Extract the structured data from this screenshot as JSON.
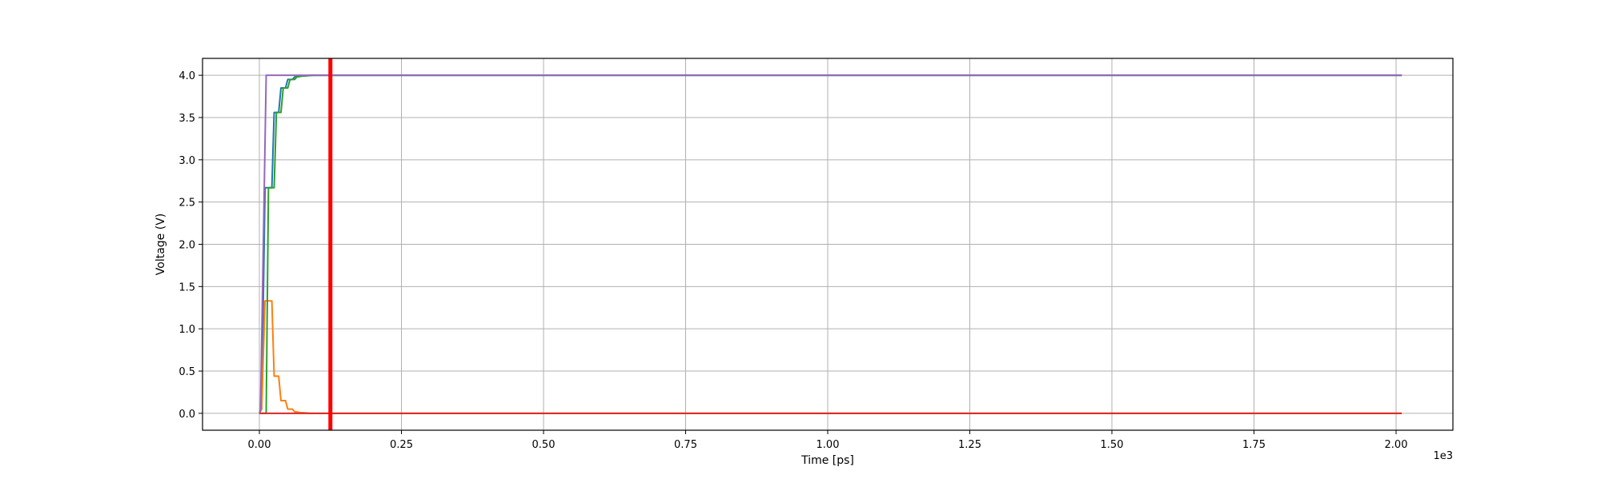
{
  "chart_data": {
    "type": "line",
    "title": "",
    "xlabel": "Time [ps]",
    "ylabel": "Voltage (V)",
    "x_offset_label": "1e3",
    "xlim": [
      -0.1,
      2.1
    ],
    "ylim": [
      -0.2,
      4.2
    ],
    "x_ticks": [
      0.0,
      0.25,
      0.5,
      0.75,
      1.0,
      1.25,
      1.5,
      1.75,
      2.0
    ],
    "x_tick_labels": [
      "0.00",
      "0.25",
      "0.50",
      "0.75",
      "1.00",
      "1.25",
      "1.50",
      "1.75",
      "2.00"
    ],
    "y_ticks": [
      0.0,
      0.5,
      1.0,
      1.5,
      2.0,
      2.5,
      3.0,
      3.5,
      4.0
    ],
    "y_tick_labels": [
      "0.0",
      "0.5",
      "1.0",
      "1.5",
      "2.0",
      "2.5",
      "3.0",
      "3.5",
      "4.0"
    ],
    "grid": true,
    "legend": "none",
    "series": [
      {
        "color": "#1f77b4",
        "points": [
          [
            0,
            0
          ],
          [
            0.004,
            0.05
          ],
          [
            0.01,
            2.67
          ],
          [
            0.022,
            2.67
          ],
          [
            0.026,
            3.56
          ],
          [
            0.034,
            3.56
          ],
          [
            0.038,
            3.85
          ],
          [
            0.046,
            3.85
          ],
          [
            0.05,
            3.95
          ],
          [
            0.058,
            3.95
          ],
          [
            0.062,
            3.98
          ],
          [
            0.072,
            3.99
          ],
          [
            0.09,
            4.0
          ],
          [
            2.01,
            4.0
          ]
        ]
      },
      {
        "color": "#ff7f0e",
        "points": [
          [
            0,
            0
          ],
          [
            0.004,
            0.05
          ],
          [
            0.01,
            1.33
          ],
          [
            0.022,
            1.33
          ],
          [
            0.026,
            0.44
          ],
          [
            0.034,
            0.44
          ],
          [
            0.038,
            0.15
          ],
          [
            0.046,
            0.15
          ],
          [
            0.05,
            0.05
          ],
          [
            0.058,
            0.05
          ],
          [
            0.062,
            0.02
          ],
          [
            0.072,
            0.01
          ],
          [
            0.09,
            0.0
          ],
          [
            2.01,
            0.0
          ]
        ]
      },
      {
        "color": "#2ca02c",
        "points": [
          [
            0,
            0
          ],
          [
            0.012,
            0.0
          ],
          [
            0.016,
            2.67
          ],
          [
            0.026,
            2.67
          ],
          [
            0.03,
            3.56
          ],
          [
            0.038,
            3.56
          ],
          [
            0.042,
            3.85
          ],
          [
            0.05,
            3.85
          ],
          [
            0.054,
            3.95
          ],
          [
            0.062,
            3.95
          ],
          [
            0.066,
            3.98
          ],
          [
            0.076,
            3.99
          ],
          [
            0.095,
            4.0
          ],
          [
            2.01,
            4.0
          ]
        ]
      },
      {
        "color": "#d62728",
        "points": [
          [
            0,
            0
          ],
          [
            2.01,
            0
          ]
        ]
      },
      {
        "color": "#9467bd",
        "points": [
          [
            0,
            0
          ],
          [
            0.002,
            0.05
          ],
          [
            0.012,
            4.0
          ],
          [
            2.01,
            4.0
          ]
        ]
      }
    ],
    "marker_line": {
      "x": 0.125,
      "color": "#ff0000"
    }
  }
}
